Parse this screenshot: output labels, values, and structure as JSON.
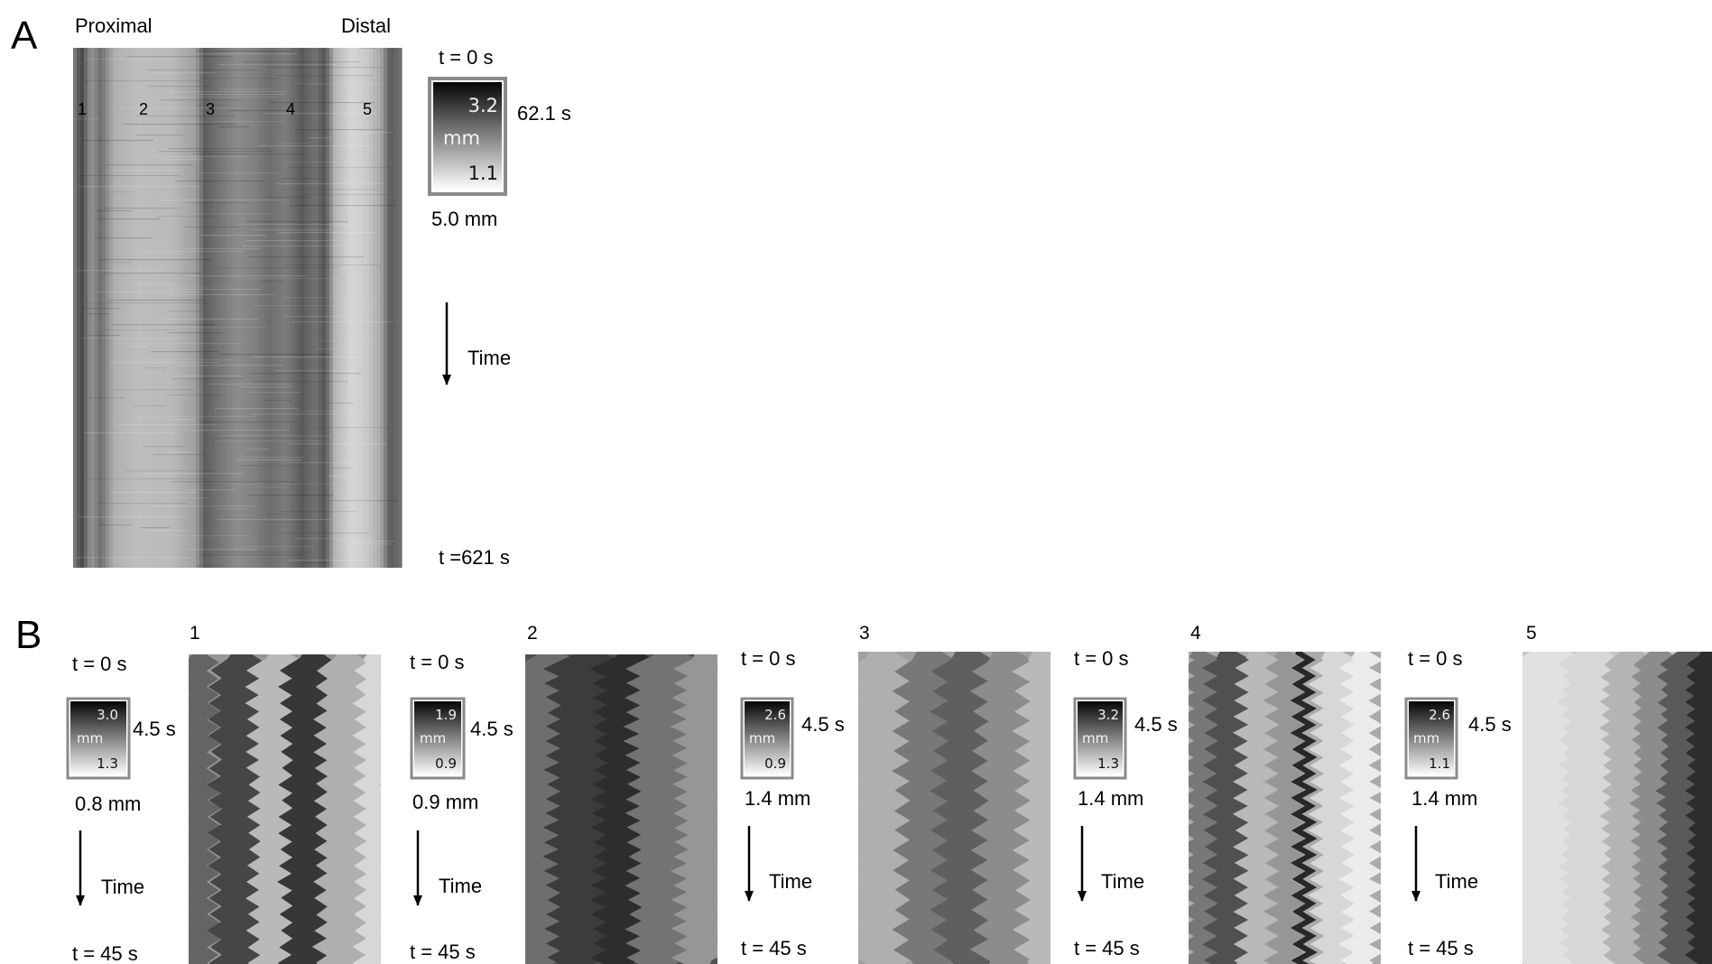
{
  "panel_a": {
    "letter": "A",
    "proximal_label": "Proximal",
    "distal_label": "Distal",
    "region_numbers": [
      "1",
      "2",
      "3",
      "4",
      "5"
    ],
    "t_start": "t = 0 s",
    "t_end": "t =621 s",
    "scale": {
      "max": "3.2",
      "unit": "mm",
      "min": "1.1"
    },
    "time_scale": "62.1 s",
    "distance_scale": "5.0 mm",
    "time_arrow_label": "Time"
  },
  "panel_b": {
    "letter": "B",
    "subpanels": [
      {
        "number": "1",
        "t_start": "t = 0 s",
        "t_end": "t = 45 s",
        "scale": {
          "max": "3.0",
          "unit": "mm",
          "min": "1.3"
        },
        "time_scale": "4.5 s",
        "distance_scale": "0.8 mm",
        "time_arrow_label": "Time"
      },
      {
        "number": "2",
        "t_start": "t = 0 s",
        "t_end": "t = 45 s",
        "scale": {
          "max": "1.9",
          "unit": "mm",
          "min": "0.9"
        },
        "time_scale": "4.5 s",
        "distance_scale": "0.9 mm",
        "time_arrow_label": "Time"
      },
      {
        "number": "3",
        "t_start": "t = 0 s",
        "t_end": "t = 45 s",
        "scale": {
          "max": "2.6",
          "unit": "mm",
          "min": "0.9"
        },
        "time_scale": "4.5 s",
        "distance_scale": "1.4 mm",
        "time_arrow_label": "Time"
      },
      {
        "number": "4",
        "t_start": "t = 0 s",
        "t_end": "t = 45 s",
        "scale": {
          "max": "3.2",
          "unit": "mm",
          "min": "1.3"
        },
        "time_scale": "4.5 s",
        "distance_scale": "1.4 mm",
        "time_arrow_label": "Time"
      },
      {
        "number": "5",
        "t_start": "t = 0 s",
        "t_end": "t = 45 s",
        "scale": {
          "max": "2.6",
          "unit": "mm",
          "min": "1.1"
        },
        "time_scale": "4.5 s",
        "distance_scale": "1.4 mm",
        "time_arrow_label": "Time"
      }
    ]
  }
}
